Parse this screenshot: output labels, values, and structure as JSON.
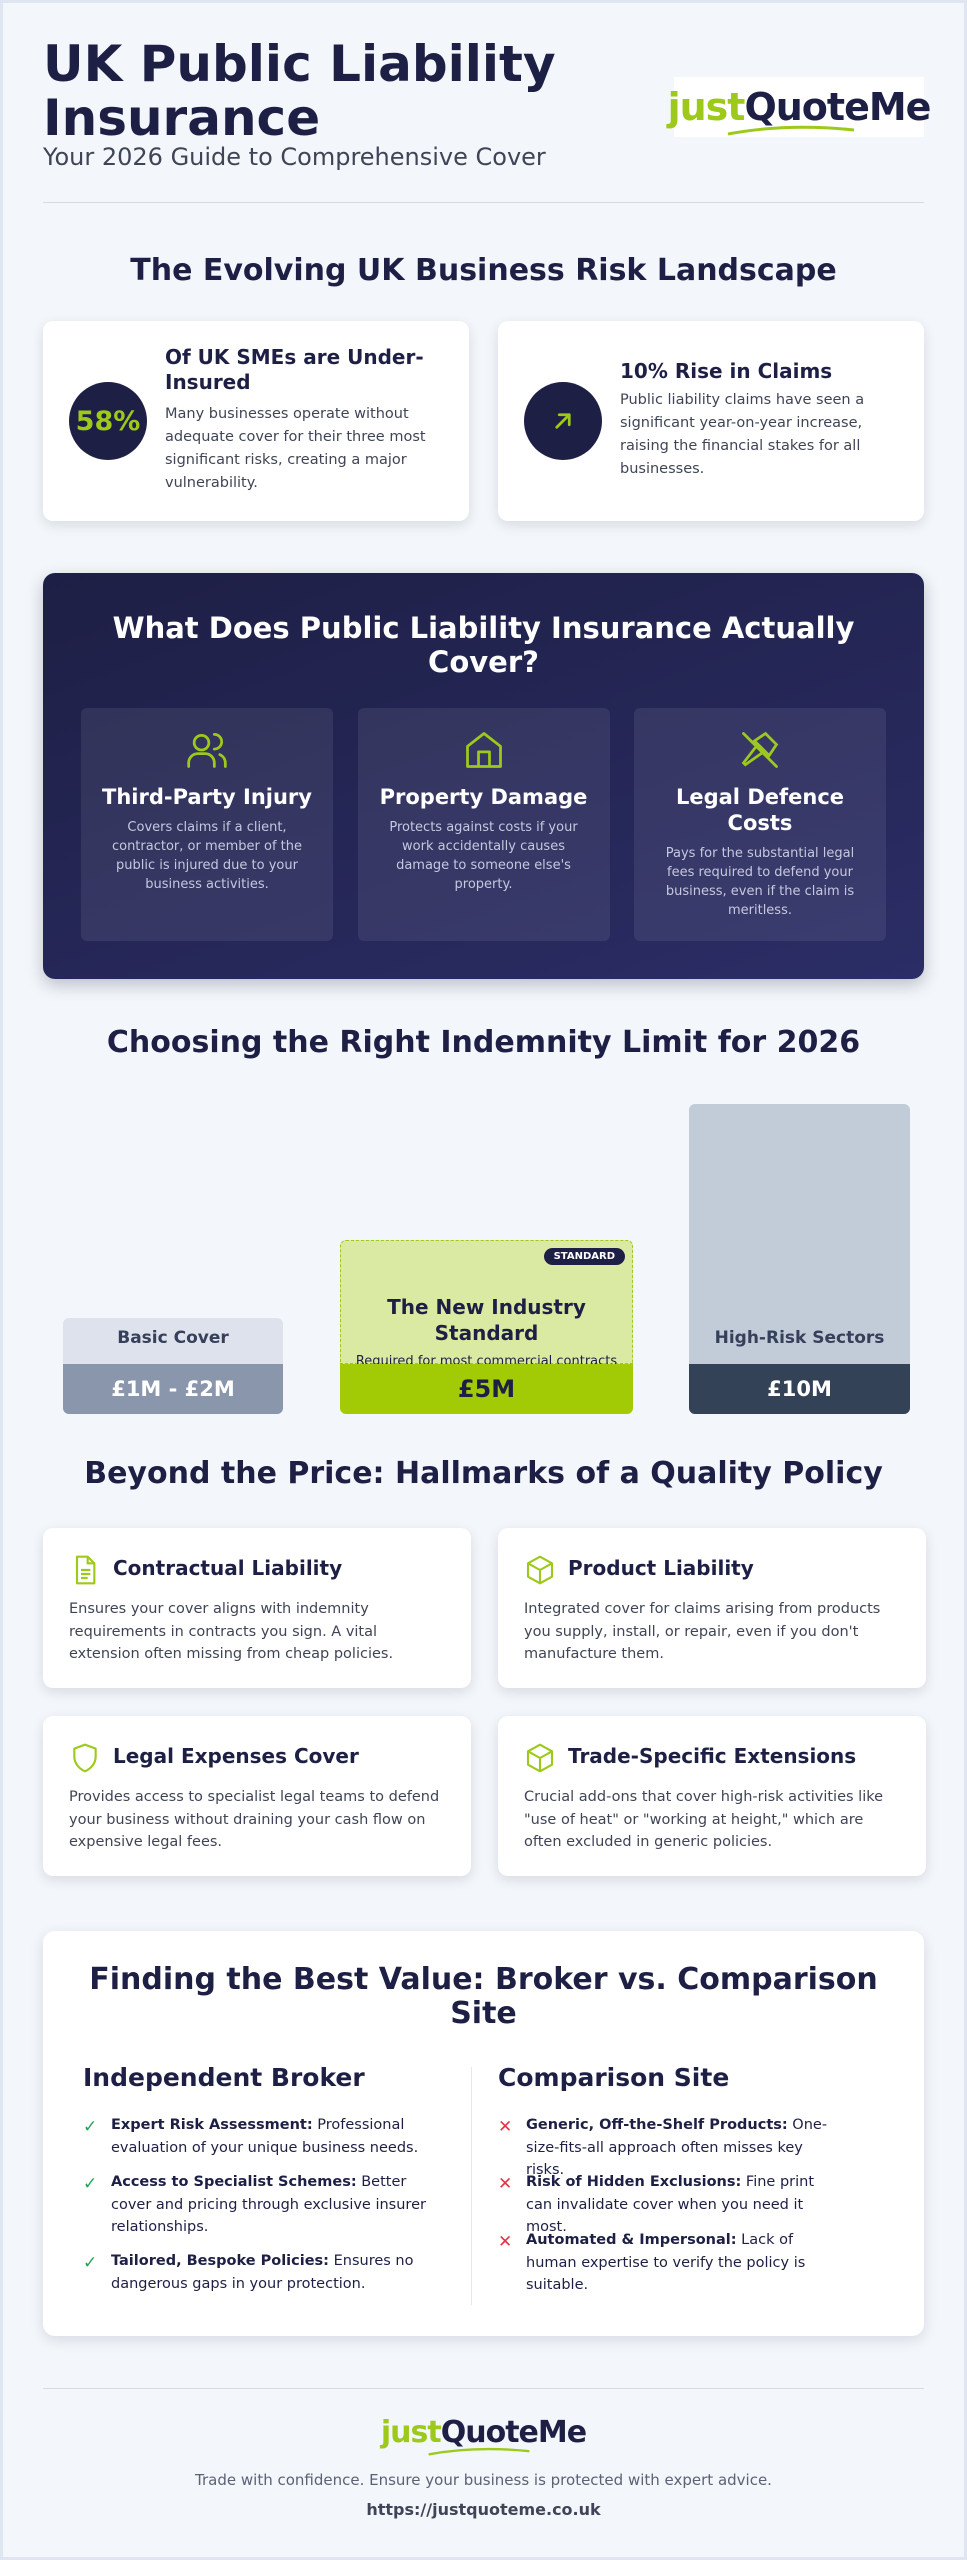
{
  "header": {
    "title": "UK Public Liability Insurance",
    "subtitle": "Your 2026 Guide to Comprehensive Cover",
    "logo": {
      "part1": "just",
      "part2": "QuoteMe"
    }
  },
  "risk": {
    "title": "The Evolving UK Business Risk Landscape",
    "cards": [
      {
        "stat": "58%",
        "heading": "Of UK SMEs are Under-Insured",
        "body": "Many businesses operate without adequate cover for their three most significant risks, creating a major vulnerability.",
        "icon": "percent-stat"
      },
      {
        "heading": "10% Rise in Claims",
        "body": "Public liability claims have seen a significant year-on-year increase, raising the financial stakes for all businesses.",
        "icon": "arrow-up-right-icon"
      }
    ]
  },
  "cover": {
    "title": "What Does Public Liability Insurance Actually Cover?",
    "cards": [
      {
        "title": "Third-Party Injury",
        "body": "Covers claims if a client, contractor, or member of the public is injured due to your business activities.",
        "icon": "users-icon"
      },
      {
        "title": "Property Damage",
        "body": "Protects against costs if your work accidentally causes damage to someone else's property.",
        "icon": "house-icon"
      },
      {
        "title": "Legal Defence Costs",
        "body": "Pays for the substantial legal fees required to defend your business, even if the claim is meritless.",
        "icon": "gavel-icon"
      }
    ]
  },
  "indemnity": {
    "title": "Choosing the Right Indemnity Limit for 2026",
    "tiers": [
      {
        "label": "Basic Cover",
        "value": "£1M - £2M",
        "level": 0.31
      },
      {
        "badge": "STANDARD",
        "heading": "The New Industry Standard",
        "body": "Required for most commercial contracts and local authority work.",
        "value": "£5M",
        "level": 0.56
      },
      {
        "label": "High-Risk Sectors",
        "value": "£10M",
        "level": 1.0
      }
    ]
  },
  "hallmarks": {
    "title": "Beyond the Price: Hallmarks of a Quality Policy",
    "items": [
      {
        "heading": "Contractual Liability",
        "body": "Ensures your cover aligns with indemnity requirements in contracts you sign. A vital extension often missing from cheap policies.",
        "icon": "document-icon"
      },
      {
        "heading": "Product Liability",
        "body": "Integrated cover for claims arising from products you supply, install, or repair, even if you don't manufacture them.",
        "icon": "box-icon"
      },
      {
        "heading": "Legal Expenses Cover",
        "body": "Provides access to specialist legal teams to defend your business without draining your cash flow on expensive legal fees.",
        "icon": "shield-icon"
      },
      {
        "heading": "Trade-Specific Extensions",
        "body": "Crucial add-ons that cover high-risk activities like \"use of heat\" or \"working at height,\" which are often excluded in generic policies.",
        "icon": "box-icon"
      }
    ]
  },
  "versus": {
    "title": "Finding the Best Value: Broker vs. Comparison Site",
    "broker": {
      "title": "Independent Broker",
      "items": [
        {
          "bold": "Expert Risk Assessment:",
          "text": " Professional evaluation of your unique business needs."
        },
        {
          "bold": "Access to Specialist Schemes:",
          "text": " Better cover and pricing through exclusive insurer relationships."
        },
        {
          "bold": "Tailored, Bespoke Policies:",
          "text": " Ensures no dangerous gaps in your protection."
        }
      ]
    },
    "comparison": {
      "title": "Comparison Site",
      "items": [
        {
          "bold": "Generic, Off-the-Shelf Products:",
          "text": " One-size-fits-all approach often misses key risks."
        },
        {
          "bold": "Risk of Hidden Exclusions:",
          "text": " Fine print can invalidate cover when you need it most."
        },
        {
          "bold": "Automated & Impersonal:",
          "text": " Lack of human expertise to verify the policy is suitable."
        }
      ]
    }
  },
  "footer": {
    "tagline": "Trade with confidence. Ensure your business is protected with expert advice.",
    "url": "https://justquoteme.co.uk"
  },
  "colors": {
    "navy": "#1e1f45",
    "lime": "#9dc91b",
    "tick": "#23a55a",
    "cross": "#e03545"
  }
}
